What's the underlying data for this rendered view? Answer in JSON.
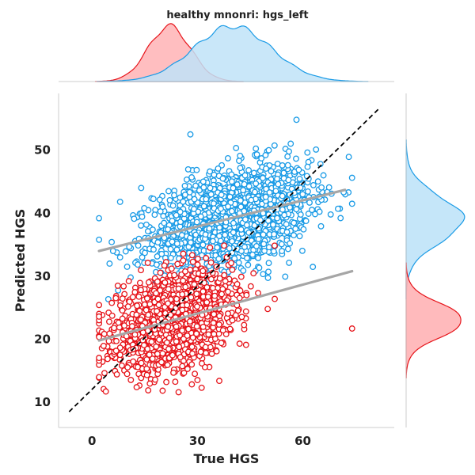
{
  "chart_data": {
    "type": "scatter",
    "title": "healthy mnonri: hgs_left",
    "xlabel": "True HGS",
    "ylabel": "Predicted HGS",
    "xlim": [
      -9.5,
      86
    ],
    "ylim": [
      6,
      59
    ],
    "xticks": [
      0,
      30,
      60
    ],
    "yticks": [
      10,
      20,
      30,
      40,
      50
    ],
    "grid": false,
    "identity_line": {
      "x": [
        -6.5,
        81.5
      ],
      "y": [
        8.5,
        56.5
      ],
      "style": "dashed",
      "color": "#000000"
    },
    "series": [
      {
        "color": "#1a9be6",
        "fill": "#bfe3f8",
        "x_center": 40,
        "x_sd": 11,
        "y_center": 39,
        "y_sd": 3.8,
        "n_points": 1800,
        "regression": {
          "x": [
            2,
            72
          ],
          "y": [
            34,
            43.7
          ]
        },
        "outliers": [
          {
            "x": 28,
            "y": 52.5
          },
          {
            "x": 2,
            "y": 39.2
          },
          {
            "x": 8,
            "y": 33
          },
          {
            "x": 5,
            "y": 32
          },
          {
            "x": 10,
            "y": 31.5
          },
          {
            "x": 11,
            "y": 29.8
          },
          {
            "x": 74,
            "y": 41.5
          },
          {
            "x": 70,
            "y": 40.7
          },
          {
            "x": 14,
            "y": 44
          },
          {
            "x": 6,
            "y": 34
          },
          {
            "x": 8,
            "y": 41.8
          },
          {
            "x": 65,
            "y": 47.8
          }
        ],
        "density_x": {
          "peak": 40,
          "sd": 11
        },
        "density_y": {
          "peak": 39,
          "sd": 3.6
        }
      },
      {
        "color": "#e6141a",
        "fill": "#ffb3b5",
        "x_center": 23,
        "x_sd": 8,
        "y_center": 23,
        "y_sd": 3.4,
        "n_points": 1800,
        "regression": {
          "x": [
            2,
            74
          ],
          "y": [
            19.8,
            30.8
          ]
        },
        "outliers": [
          {
            "x": 74,
            "y": 21.7
          },
          {
            "x": 16,
            "y": 11.9
          },
          {
            "x": 10,
            "y": 14.5
          },
          {
            "x": 52,
            "y": 26.4
          },
          {
            "x": 50,
            "y": 24.8
          },
          {
            "x": 2,
            "y": 23.6
          },
          {
            "x": 42,
            "y": 19.3
          },
          {
            "x": 9,
            "y": 28.4
          },
          {
            "x": 5,
            "y": 20.9
          }
        ],
        "density_x": {
          "peak": 22,
          "sd": 6
        },
        "density_y": {
          "peak": 23,
          "sd": 2.6
        }
      }
    ]
  }
}
